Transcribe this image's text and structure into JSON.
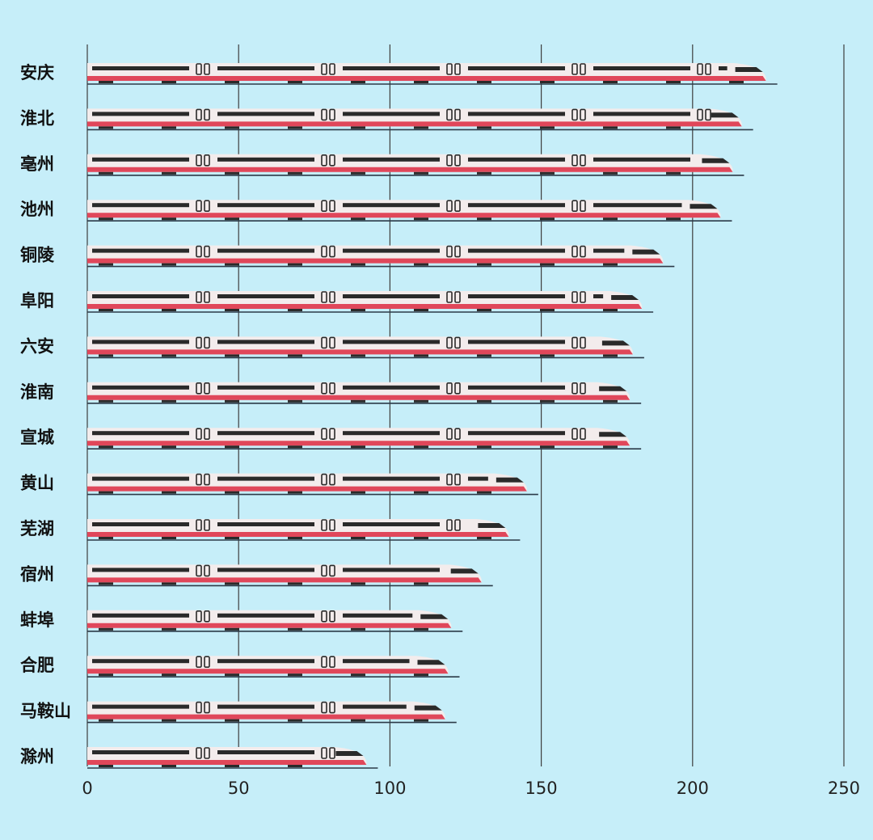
{
  "chart_data": {
    "type": "bar",
    "orientation": "horizontal",
    "mark_style": "high-speed-train",
    "title": "",
    "xlabel": "",
    "ylabel": "",
    "categories": [
      "安庆",
      "淮北",
      "亳州",
      "池州",
      "铜陵",
      "阜阳",
      "六安",
      "淮南",
      "宣城",
      "黄山",
      "芜湖",
      "宿州",
      "蚌埠",
      "合肥",
      "马鞍山",
      "滁州"
    ],
    "values": [
      228,
      220,
      217,
      213,
      194,
      187,
      184,
      183,
      183,
      149,
      143,
      134,
      124,
      123,
      122,
      96
    ],
    "xlim": [
      0,
      250
    ],
    "xticks": [
      0,
      50,
      100,
      150,
      200,
      250
    ],
    "grid": true,
    "legend": "none",
    "colors": {
      "background": "#c6eef9",
      "grid": "#3d3d3d",
      "train_body": "#f3ecec",
      "train_stripe": "#e0475a",
      "train_windows": "#2a2a2a",
      "baseline": "#2b3a48"
    }
  }
}
